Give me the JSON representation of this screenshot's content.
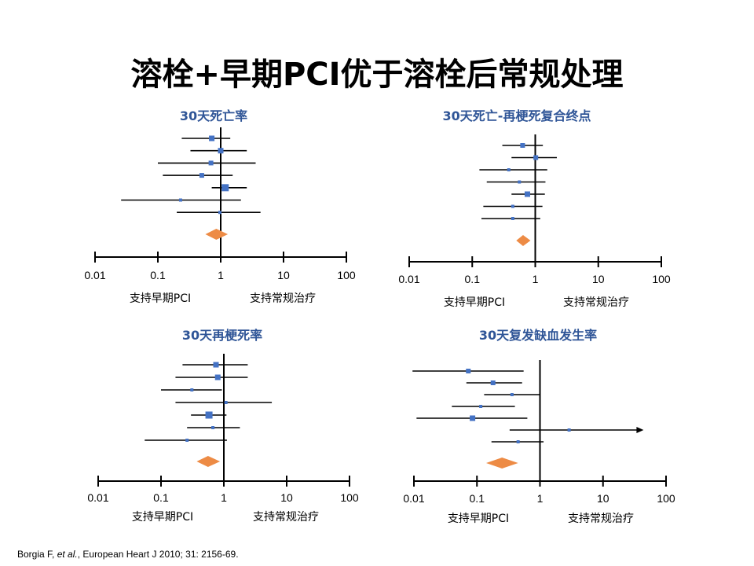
{
  "slide": {
    "title": "溶栓+早期PCI优于溶栓后常规处理",
    "citation": {
      "authors": "Borgia F, ",
      "etal": "et al.",
      "rest": ", European Heart J 2010; 31: 2156-69."
    }
  },
  "colors": {
    "title": "#000000",
    "panel_title": "#2f5597",
    "square": "#4472c4",
    "diamond": "#ed8b45",
    "line": "#000000"
  },
  "chart_data": [
    {
      "type": "forest",
      "title": "30天死亡率",
      "xscale": "log",
      "xlim": [
        0.01,
        100
      ],
      "ticks": [
        "0.01",
        "0.1",
        "1",
        "10",
        "100"
      ],
      "left_label": "支持早期PCI",
      "right_label": "支持常规治疗",
      "studies": [
        {
          "est": 0.72,
          "lo": 0.24,
          "hi": 1.42,
          "weight": 2
        },
        {
          "est": 1.0,
          "lo": 0.33,
          "hi": 2.6,
          "weight": 2
        },
        {
          "est": 0.7,
          "lo": 0.1,
          "hi": 3.6,
          "weight": 1
        },
        {
          "est": 0.5,
          "lo": 0.12,
          "hi": 1.55,
          "weight": 1
        },
        {
          "est": 1.18,
          "lo": 0.72,
          "hi": 2.6,
          "weight": 3
        },
        {
          "est": 0.23,
          "lo": 0.026,
          "hi": 2.1,
          "weight": 0
        },
        {
          "est": 0.97,
          "lo": 0.2,
          "hi": 4.3,
          "weight": 0
        }
      ],
      "pooled": {
        "est": 0.85,
        "lo": 0.57,
        "hi": 1.3
      }
    },
    {
      "type": "forest",
      "title": "30天死亡-再梗死复合终点",
      "xscale": "log",
      "xlim": [
        0.01,
        100
      ],
      "ticks": [
        "0.01",
        "0.1",
        "1",
        "10",
        "100"
      ],
      "left_label": "支持早期PCI",
      "right_label": "支持常规治疗",
      "studies": [
        {
          "est": 0.63,
          "lo": 0.3,
          "hi": 1.32,
          "weight": 1
        },
        {
          "est": 1.02,
          "lo": 0.42,
          "hi": 2.2,
          "weight": 1
        },
        {
          "est": 0.38,
          "lo": 0.13,
          "hi": 1.55,
          "weight": 0
        },
        {
          "est": 0.56,
          "lo": 0.17,
          "hi": 1.45,
          "weight": 0
        },
        {
          "est": 0.75,
          "lo": 0.42,
          "hi": 1.42,
          "weight": 2
        },
        {
          "est": 0.44,
          "lo": 0.15,
          "hi": 1.3,
          "weight": 0
        },
        {
          "est": 0.44,
          "lo": 0.14,
          "hi": 1.2,
          "weight": 0
        }
      ],
      "pooled": {
        "est": 0.64,
        "lo": 0.5,
        "hi": 0.84
      }
    },
    {
      "type": "forest",
      "title": "30天再梗死率",
      "xscale": "log",
      "xlim": [
        0.01,
        100
      ],
      "ticks": [
        "0.01",
        "0.1",
        "1",
        "10",
        "100"
      ],
      "left_label": "支持早期PCI",
      "right_label": "支持常规治疗",
      "studies": [
        {
          "est": 0.75,
          "lo": 0.22,
          "hi": 2.4,
          "weight": 2
        },
        {
          "est": 0.8,
          "lo": 0.17,
          "hi": 2.4,
          "weight": 2
        },
        {
          "est": 0.31,
          "lo": 0.1,
          "hi": 0.93,
          "weight": 0
        },
        {
          "est": 1.08,
          "lo": 0.17,
          "hi": 5.8,
          "weight": 0
        },
        {
          "est": 0.58,
          "lo": 0.3,
          "hi": 1.1,
          "weight": 3
        },
        {
          "est": 0.67,
          "lo": 0.26,
          "hi": 1.8,
          "weight": 0
        },
        {
          "est": 0.26,
          "lo": 0.055,
          "hi": 1.12,
          "weight": 0
        }
      ],
      "pooled": {
        "est": 0.56,
        "lo": 0.37,
        "hi": 0.87
      }
    },
    {
      "type": "forest",
      "title": "30天复发缺血发生率",
      "xscale": "log",
      "xlim": [
        0.01,
        100
      ],
      "ticks": [
        "0.01",
        "0.1",
        "1",
        "10",
        "100"
      ],
      "left_label": "支持早期PCI",
      "right_label": "支持常规治疗",
      "studies": [
        {
          "est": 0.073,
          "lo": 0.0095,
          "hi": 0.55,
          "weight": 1
        },
        {
          "est": 0.18,
          "lo": 0.068,
          "hi": 0.52,
          "weight": 1
        },
        {
          "est": 0.36,
          "lo": 0.13,
          "hi": 1.0,
          "weight": 0
        },
        {
          "est": 0.115,
          "lo": 0.04,
          "hi": 0.4,
          "weight": 0
        },
        {
          "est": 0.085,
          "lo": 0.011,
          "hi": 0.63,
          "weight": 2
        },
        {
          "est": 2.9,
          "lo": 0.33,
          "hi": 35,
          "weight": 0,
          "arrow": true
        },
        {
          "est": 0.45,
          "lo": 0.17,
          "hi": 1.14,
          "weight": 0
        }
      ],
      "pooled": {
        "est": 0.25,
        "lo": 0.14,
        "hi": 0.45
      }
    }
  ]
}
